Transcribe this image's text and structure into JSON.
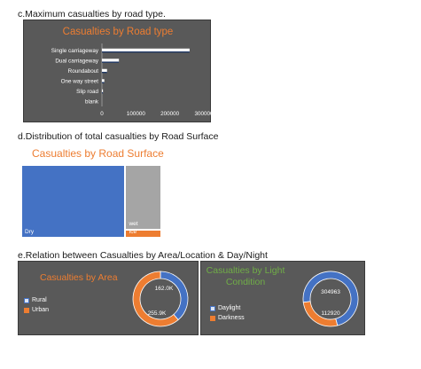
{
  "sections": {
    "c": "c.Maximum casualties by road type.",
    "d": "d.Distribution of total casualties by Road Surface",
    "e": "e.Relation between Casualties by Area/Location & Day/Night"
  },
  "colors": {
    "panel_bg": "#595959",
    "title": "#ed7d31",
    "blue": "#4472c4",
    "orange": "#ed7d31",
    "grey": "#a5a5a5"
  },
  "chart_data": [
    {
      "type": "bar",
      "orientation": "horizontal",
      "title": "Casualties by Road type",
      "categories": [
        "Single carriageway",
        "Dual carriageway",
        "Roundabout",
        "One way street",
        "Slip road",
        "blank"
      ],
      "values": [
        258000,
        50000,
        15000,
        7000,
        3000,
        0
      ],
      "xticks": [
        "0",
        "100000",
        "200000",
        "300000"
      ],
      "xlim": [
        0,
        300000
      ]
    },
    {
      "type": "treemap",
      "title": "Casualties by Road Surface",
      "categories": [
        "Dry",
        "wet",
        "Ice"
      ],
      "values": [
        310000,
        95000,
        12000
      ]
    },
    {
      "type": "pie",
      "style": "doughnut",
      "title": "Casualties by Area",
      "categories": [
        "Rural",
        "Urban"
      ],
      "values": [
        162000,
        255900
      ],
      "data_labels": [
        "162.0K",
        "255.9K"
      ]
    },
    {
      "type": "pie",
      "style": "doughnut",
      "title": "Casualties by Light Condition",
      "categories": [
        "Daylight",
        "Darkness"
      ],
      "values": [
        304963,
        112920
      ],
      "data_labels": [
        "304963",
        "112920"
      ]
    }
  ]
}
